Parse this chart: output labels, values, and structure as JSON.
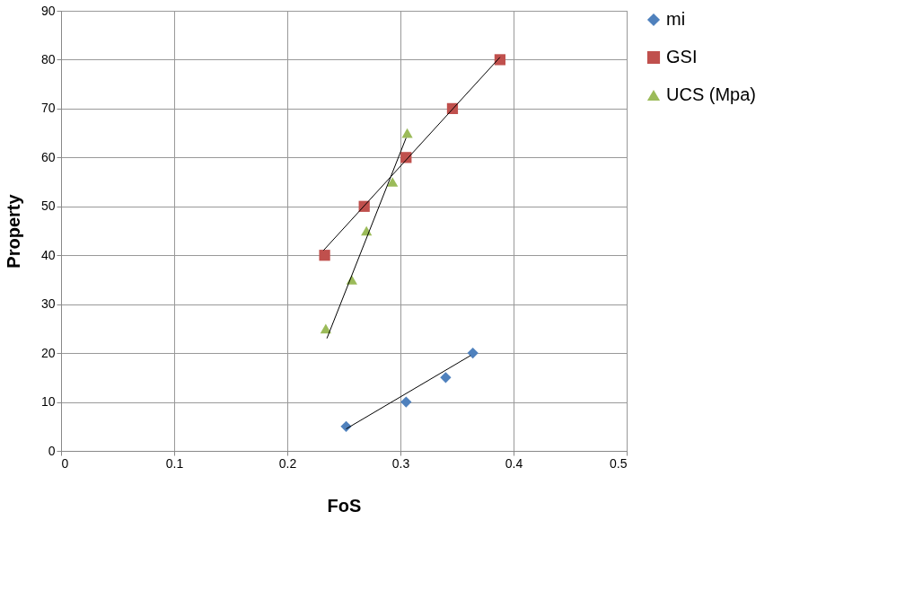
{
  "chart_data": {
    "type": "scatter",
    "xlabel": "FoS",
    "ylabel": "Property",
    "xlim": [
      0,
      0.5
    ],
    "xticks": [
      0,
      0.1,
      0.2,
      0.3,
      0.4,
      0.5
    ],
    "ylim": [
      0,
      90
    ],
    "yticks": [
      0,
      10,
      20,
      30,
      40,
      50,
      60,
      70,
      80,
      90
    ],
    "grid": true,
    "legend": "right",
    "series": [
      {
        "name": "mi",
        "color": "#4f81bd",
        "marker": "diamond",
        "x": [
          0.252,
          0.305,
          0.34,
          0.364
        ],
        "values": [
          5,
          10,
          15,
          20
        ]
      },
      {
        "name": "GSI",
        "color": "#c0504d",
        "marker": "square",
        "x": [
          0.233,
          0.268,
          0.305,
          0.346,
          0.388
        ],
        "values": [
          40,
          50,
          60,
          70,
          80
        ]
      },
      {
        "name": "UCS (Mpa)",
        "color": "#9bbb59",
        "marker": "triangle",
        "x": [
          0.234,
          0.257,
          0.27,
          0.293,
          0.306
        ],
        "values": [
          25,
          35,
          45,
          55,
          65
        ]
      },
      {
        "type": "line",
        "color": "#000000",
        "x": [
          0.252,
          0.362
        ],
        "values": [
          4.5,
          19.5
        ]
      },
      {
        "type": "line",
        "color": "#000000",
        "x": [
          0.232,
          0.388
        ],
        "values": [
          41,
          80.5
        ]
      },
      {
        "type": "line",
        "color": "#000000",
        "x": [
          0.235,
          0.305
        ],
        "values": [
          23,
          64
        ]
      }
    ]
  }
}
